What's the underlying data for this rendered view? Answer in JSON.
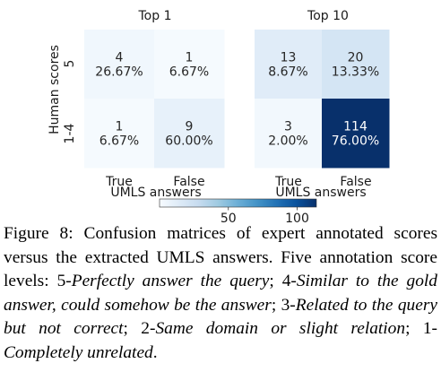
{
  "chart_data": [
    {
      "type": "heatmap",
      "title": "Top 1",
      "xlabel": "UMLS answers",
      "ylabel": "Human scores",
      "x_categories": [
        "True",
        "False"
      ],
      "y_categories": [
        "5",
        "1-4"
      ],
      "cells": [
        {
          "row": "5",
          "col": "True",
          "count": "4",
          "percent": "26.67%",
          "value": 4
        },
        {
          "row": "5",
          "col": "False",
          "count": "1",
          "percent": "6.67%",
          "value": 1
        },
        {
          "row": "1-4",
          "col": "True",
          "count": "1",
          "percent": "6.67%",
          "value": 1
        },
        {
          "row": "1-4",
          "col": "False",
          "count": "9",
          "percent": "60.00%",
          "value": 9
        }
      ]
    },
    {
      "type": "heatmap",
      "title": "Top 10",
      "xlabel": "UMLS answers",
      "ylabel": "",
      "x_categories": [
        "True",
        "False"
      ],
      "y_categories": [
        "5",
        "1-4"
      ],
      "cells": [
        {
          "row": "5",
          "col": "True",
          "count": "13",
          "percent": "8.67%",
          "value": 13
        },
        {
          "row": "5",
          "col": "False",
          "count": "20",
          "percent": "13.33%",
          "value": 20
        },
        {
          "row": "1-4",
          "col": "True",
          "count": "3",
          "percent": "2.00%",
          "value": 3
        },
        {
          "row": "1-4",
          "col": "False",
          "count": "114",
          "percent": "76.00%",
          "value": 114
        }
      ]
    }
  ],
  "colorbar": {
    "colormap": "Blues",
    "range": [
      0,
      114
    ],
    "ticks": [
      50,
      100
    ],
    "tick_labels": [
      "50",
      "100"
    ]
  },
  "caption": {
    "label": "Figure 8:",
    "intro": "Confusion matrices of expert annotated scores versus the extracted UMLS answers. Five annotation score levels: ",
    "levels": [
      {
        "prefix": "5-",
        "text": "Perfectly answer the query",
        "sep": "; "
      },
      {
        "prefix": "4-",
        "text": "Similar to the gold answer, could somehow be the answer",
        "sep": "; "
      },
      {
        "prefix": "3-",
        "text": "Related to the query but not correct",
        "sep": "; "
      },
      {
        "prefix": "2-",
        "text": "Same domain or slight relation",
        "sep": "; "
      },
      {
        "prefix": "1-",
        "text": "Completely unrelated",
        "sep": "."
      }
    ]
  }
}
